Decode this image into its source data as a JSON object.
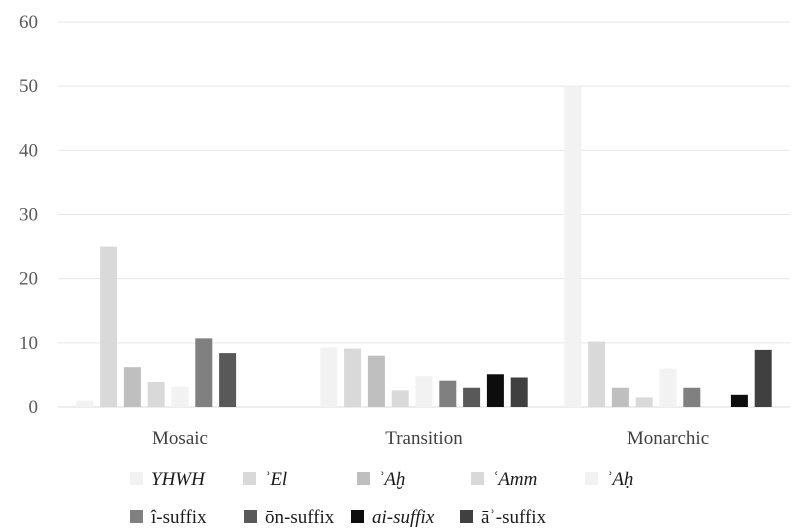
{
  "chart_data": {
    "type": "bar",
    "categories": [
      "Mosaic",
      "Transition",
      "Monarchic"
    ],
    "ylim": [
      0,
      60
    ],
    "yticks": [
      0,
      10,
      20,
      30,
      40,
      50,
      60
    ],
    "grid": true,
    "legend_position": "bottom",
    "series": [
      {
        "name": "YHWH",
        "italic": true,
        "color": "#f2f2f2",
        "values": [
          1,
          9.3,
          50
        ]
      },
      {
        "name": "ʾEl",
        "italic": true,
        "color": "#d9d9d9",
        "values": [
          25,
          9.1,
          10.2
        ]
      },
      {
        "name": "ʾAḫ",
        "italic": true,
        "color": "#bfbfbf",
        "values": [
          6.2,
          8,
          3
        ]
      },
      {
        "name": "ʿAmm",
        "italic": true,
        "color": "#d9d9d9",
        "values": [
          3.9,
          2.6,
          1.5
        ]
      },
      {
        "name": "ʾAḥ",
        "italic": true,
        "color": "#f2f2f2",
        "values": [
          3.2,
          4.8,
          6
        ]
      },
      {
        "name": "î-suffix",
        "italic": false,
        "color": "#808080",
        "values": [
          10.7,
          4.1,
          3
        ]
      },
      {
        "name": "ōn-suffix",
        "italic": false,
        "color": "#595959",
        "values": [
          8.4,
          3,
          0
        ]
      },
      {
        "name": "ai-suffix",
        "italic": true,
        "color": "#0d0d0d",
        "values": [
          0,
          5.1,
          1.9
        ]
      },
      {
        "name": "āʾ-suffix",
        "italic": false,
        "color": "#404040",
        "values": [
          0,
          4.6,
          8.9
        ]
      }
    ]
  }
}
